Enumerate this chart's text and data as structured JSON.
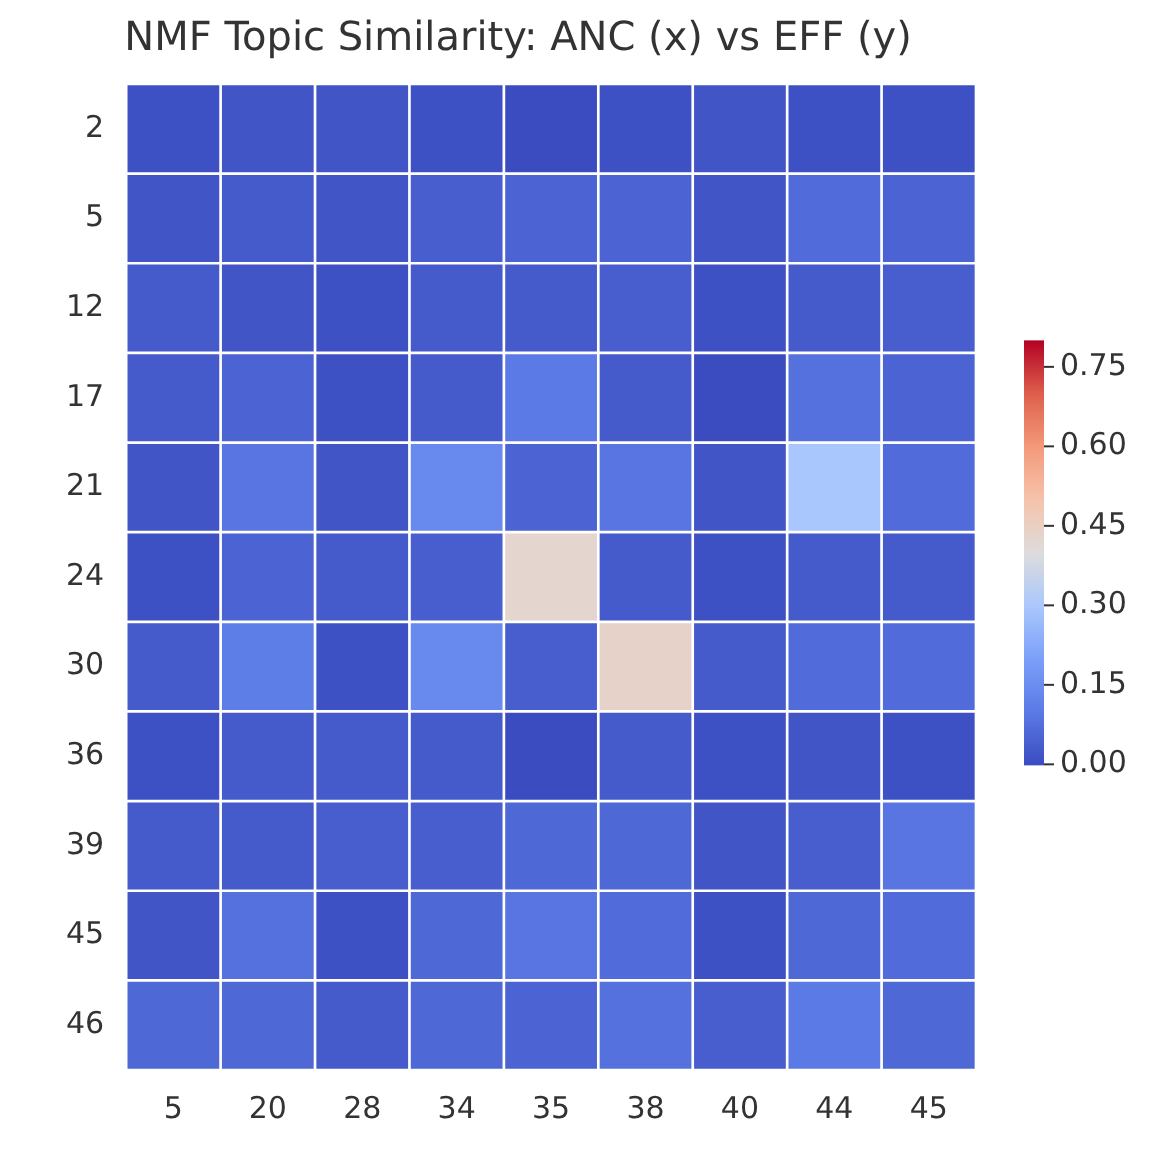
{
  "chart_data": {
    "type": "heatmap",
    "title": "NMF Topic Similarity: ANC (x) vs EFF (y)",
    "categories": [
      "5",
      "20",
      "28",
      "34",
      "35",
      "38",
      "40",
      "44",
      "45"
    ],
    "y_categories": [
      "2",
      "5",
      "12",
      "17",
      "21",
      "24",
      "30",
      "36",
      "39",
      "45",
      "46"
    ],
    "cells": [
      [
        0.01,
        0.02,
        0.02,
        0.01,
        0.0,
        0.01,
        0.02,
        0.01,
        0.01
      ],
      [
        0.02,
        0.03,
        0.02,
        0.04,
        0.05,
        0.05,
        0.02,
        0.07,
        0.05
      ],
      [
        0.03,
        0.02,
        0.01,
        0.03,
        0.03,
        0.04,
        0.01,
        0.03,
        0.04
      ],
      [
        0.03,
        0.05,
        0.01,
        0.03,
        0.1,
        0.03,
        0.0,
        0.08,
        0.05
      ],
      [
        0.02,
        0.09,
        0.02,
        0.14,
        0.05,
        0.09,
        0.02,
        0.3,
        0.07
      ],
      [
        0.01,
        0.05,
        0.03,
        0.04,
        0.43,
        0.03,
        0.01,
        0.03,
        0.03
      ],
      [
        0.03,
        0.11,
        0.01,
        0.14,
        0.04,
        0.44,
        0.03,
        0.07,
        0.07
      ],
      [
        0.01,
        0.03,
        0.03,
        0.03,
        0.0,
        0.03,
        0.01,
        0.02,
        0.01
      ],
      [
        0.03,
        0.03,
        0.04,
        0.04,
        0.06,
        0.06,
        0.02,
        0.04,
        0.09
      ],
      [
        0.02,
        0.08,
        0.01,
        0.06,
        0.09,
        0.07,
        0.01,
        0.06,
        0.07
      ],
      [
        0.06,
        0.06,
        0.03,
        0.06,
        0.05,
        0.08,
        0.04,
        0.1,
        0.06
      ]
    ],
    "clim": [
      0,
      0.8
    ],
    "cticks": [
      {
        "value": 0,
        "label": "0.00"
      },
      {
        "value": 0.15,
        "label": "0.15"
      },
      {
        "value": 0.3,
        "label": "0.30"
      },
      {
        "value": 0.45,
        "label": "0.45"
      },
      {
        "value": 0.6,
        "label": "0.60"
      },
      {
        "value": 0.75,
        "label": "0.75"
      }
    ]
  }
}
